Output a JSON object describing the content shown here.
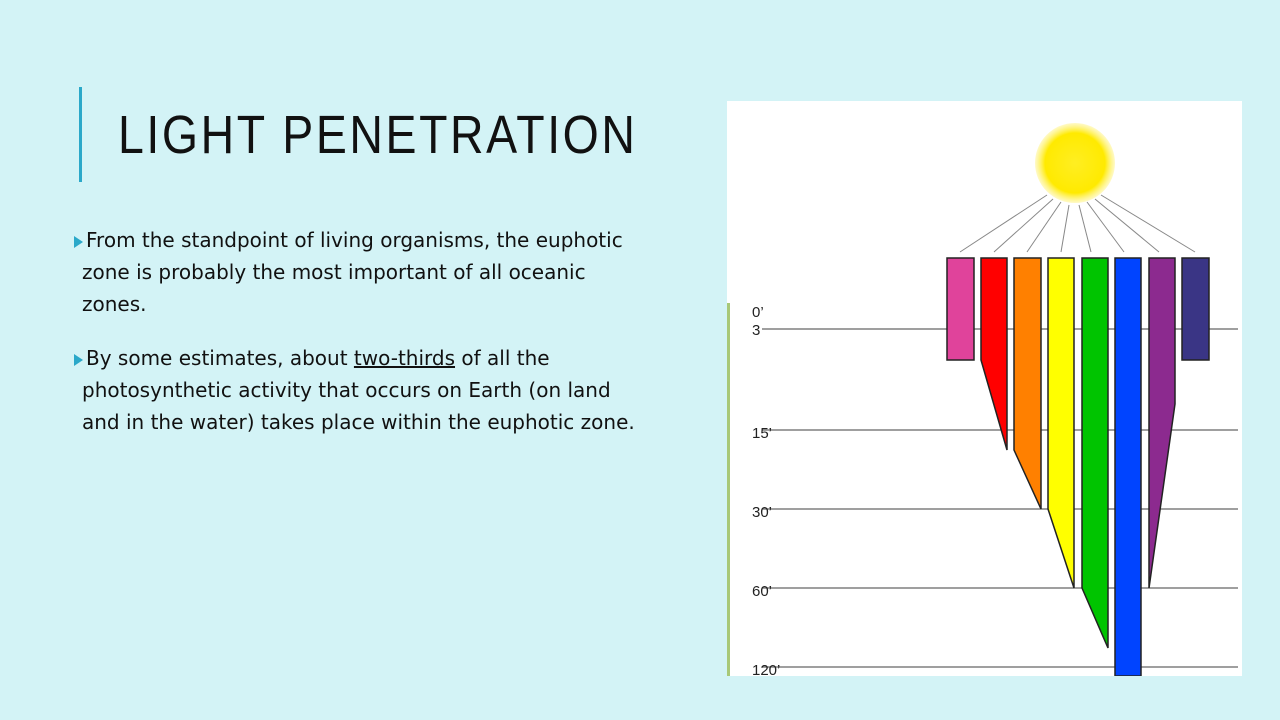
{
  "slide": {
    "title": "LIGHT PENETRATION",
    "bullets": [
      {
        "text": "From the standpoint of living organisms, the euphotic zone is probably the most important of all oceanic zones."
      },
      {
        "before": "By some estimates, about ",
        "underlined": "two-thirds",
        "after": " of all the photosynthetic activity that occurs on Earth (on land and in the water) takes place within the euphotic zone."
      }
    ]
  },
  "figure": {
    "depth_labels": [
      "0’",
      "3",
      "15’",
      "30’",
      "60’",
      "120’"
    ],
    "bars": [
      {
        "name": "pink",
        "color": "#e0439b"
      },
      {
        "name": "red",
        "color": "#ff0000"
      },
      {
        "name": "orange",
        "color": "#ff8000"
      },
      {
        "name": "yellow",
        "color": "#ffff00"
      },
      {
        "name": "green",
        "color": "#00c400"
      },
      {
        "name": "blue",
        "color": "#0044ff"
      },
      {
        "name": "purple",
        "color": "#8c2a8f"
      },
      {
        "name": "indigo",
        "color": "#3a3585"
      }
    ],
    "sun_color": "#ffee22"
  }
}
